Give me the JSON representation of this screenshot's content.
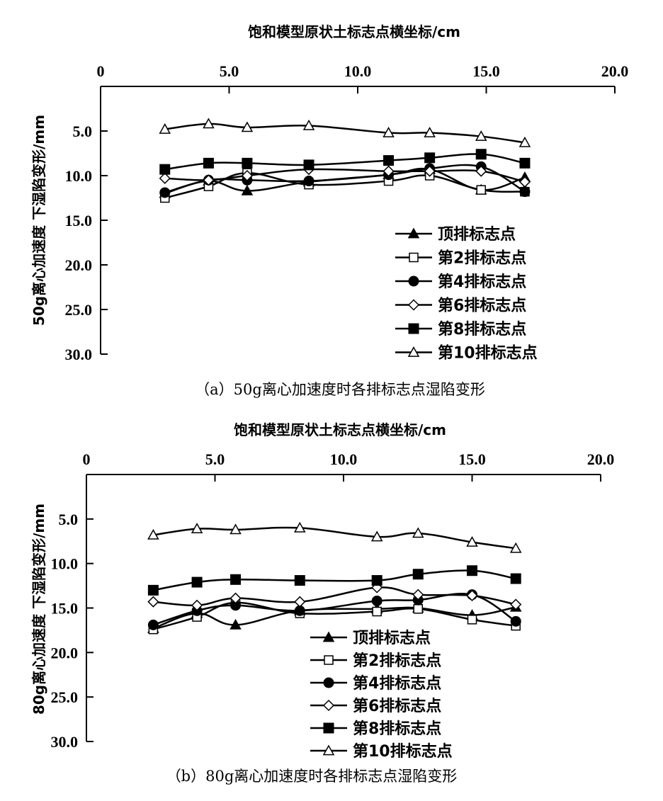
{
  "chart_data": [
    {
      "type": "line",
      "panel": "a",
      "title": "",
      "caption": "（a）50g离心加速度时各排标志点湿陷变形",
      "xlabel": "饱和模型原状土标志点横坐标/cm",
      "ylabel": "50g离心加速度 下湿陷变形/mm",
      "xlim": [
        0,
        20
      ],
      "ylim": [
        0,
        30
      ],
      "y_inverted": true,
      "x_axis_position": "top",
      "x_ticks": [
        "0",
        "5.0",
        "10.0",
        "15.0",
        "20.0"
      ],
      "x_tick_values": [
        0,
        5,
        10,
        15,
        20
      ],
      "y_ticks": [
        "5.0",
        "10.0",
        "15.0",
        "20.0",
        "25.0",
        "30.0"
      ],
      "y_tick_values": [
        5,
        10,
        15,
        20,
        25,
        30
      ],
      "grid": false,
      "legend_position": "bottom-right",
      "x": [
        2.5,
        4.2,
        5.7,
        8.1,
        11.2,
        12.8,
        14.8,
        16.5
      ],
      "series": [
        {
          "name": "顶排标志点",
          "marker": "triangle-filled",
          "values": [
            12.0,
            10.6,
            11.7,
            10.7,
            9.9,
            9.3,
            11.6,
            10.2
          ]
        },
        {
          "name": "第2排标志点",
          "marker": "square-open",
          "values": [
            12.5,
            11.2,
            9.7,
            11.0,
            10.6,
            10.0,
            11.6,
            11.8
          ]
        },
        {
          "name": "第4排标志点",
          "marker": "circle-filled",
          "values": [
            11.9,
            10.5,
            10.5,
            10.6,
            9.9,
            9.2,
            9.0,
            11.8
          ]
        },
        {
          "name": "第6排标志点",
          "marker": "diamond-open",
          "values": [
            10.3,
            10.5,
            10.0,
            9.3,
            9.5,
            9.5,
            9.5,
            10.7
          ]
        },
        {
          "name": "第8排标志点",
          "marker": "square-filled",
          "values": [
            9.3,
            8.6,
            8.6,
            8.8,
            8.3,
            8.0,
            7.6,
            8.6
          ]
        },
        {
          "name": "第10排标志点",
          "marker": "triangle-open",
          "values": [
            4.8,
            4.2,
            4.6,
            4.4,
            5.2,
            5.2,
            5.6,
            6.3
          ]
        }
      ]
    },
    {
      "type": "line",
      "panel": "b",
      "title": "",
      "caption": "（b）80g离心加速度时各排标志点湿陷变形",
      "xlabel": "饱和模型原状土标志点横坐标/cm",
      "ylabel": "80g离心加速度 下湿陷变形/mm",
      "xlim": [
        0,
        20
      ],
      "ylim": [
        0,
        30
      ],
      "y_inverted": true,
      "x_axis_position": "top",
      "x_ticks": [
        "0",
        "5.0",
        "10.0",
        "15.0",
        "20.0"
      ],
      "x_tick_values": [
        0,
        5,
        10,
        15,
        20
      ],
      "y_ticks": [
        "5.0",
        "10.0",
        "15.0",
        "20.0",
        "25.0",
        "30.0"
      ],
      "y_tick_values": [
        5,
        10,
        15,
        20,
        25,
        30
      ],
      "grid": false,
      "legend_position": "bottom-center",
      "x": [
        2.6,
        4.3,
        5.8,
        8.3,
        11.3,
        12.9,
        15.0,
        16.7
      ],
      "series": [
        {
          "name": "顶排标志点",
          "marker": "triangle-filled",
          "values": [
            17.3,
            15.6,
            16.9,
            15.3,
            15.1,
            15.0,
            15.8,
            14.9
          ]
        },
        {
          "name": "第2排标志点",
          "marker": "square-open",
          "values": [
            17.4,
            16.0,
            14.4,
            15.6,
            15.4,
            15.1,
            16.3,
            17.0
          ]
        },
        {
          "name": "第4排标志点",
          "marker": "circle-filled",
          "values": [
            16.9,
            15.3,
            14.7,
            15.3,
            14.2,
            14.1,
            13.5,
            16.5
          ]
        },
        {
          "name": "第6排标志点",
          "marker": "diamond-open",
          "values": [
            14.3,
            14.7,
            13.9,
            14.3,
            12.7,
            13.5,
            13.6,
            14.6
          ]
        },
        {
          "name": "第8排标志点",
          "marker": "square-filled",
          "values": [
            13.0,
            12.1,
            11.8,
            11.9,
            11.9,
            11.2,
            10.8,
            11.7
          ]
        },
        {
          "name": "第10排标志点",
          "marker": "triangle-open",
          "values": [
            6.8,
            6.1,
            6.2,
            6.0,
            7.0,
            6.6,
            7.6,
            8.3
          ]
        }
      ]
    }
  ]
}
